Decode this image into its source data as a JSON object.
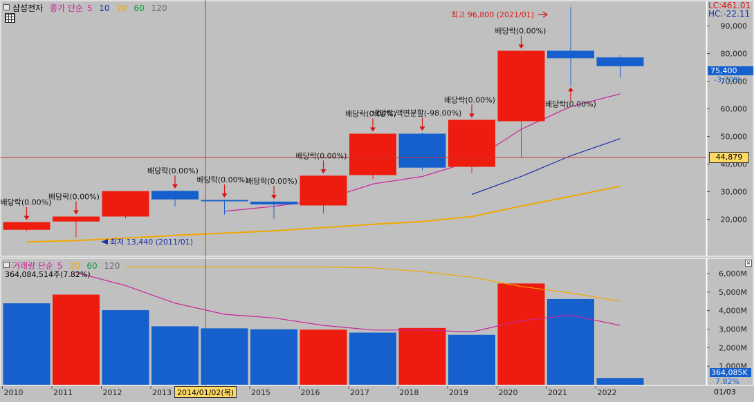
{
  "stock_name": "삼성전자",
  "price_header": {
    "label": "종가 단순",
    "ma_periods": [
      "5",
      "10",
      "20",
      "60",
      "120"
    ],
    "ma_colors": [
      "#cc2299",
      "#1a2fa8",
      "#f0a800",
      "#009933",
      "#6a6a6a"
    ]
  },
  "volume_header": {
    "label": "거래량 단순",
    "ma_periods": [
      "5",
      "20",
      "60",
      "120"
    ],
    "ma_colors": [
      "#cc2299",
      "#f0a800",
      "#009933",
      "#6a6a6a"
    ],
    "info": "364,084,514주(7.82%)"
  },
  "right_info": {
    "lc": "LC:461.01",
    "hc": "HC:-22.11"
  },
  "current_price": {
    "value": "75,400",
    "change": "-3.70%"
  },
  "crosshair": {
    "price_label": "44,879",
    "date_label": "2014/01/02(목)"
  },
  "volume_current": {
    "value": "364,085K",
    "pct": "7.82%"
  },
  "last_tick_date": "01/03",
  "colors": {
    "up": "#ee1c0f",
    "down": "#1560cc",
    "background": "#c0c0c0",
    "crosshair": "#cc3333"
  },
  "annotations": {
    "high": "최고 96,800 (2021/01)",
    "low": "최저 13,440 (2011/01)",
    "dividend": "배당락(0.00%)",
    "split": "배당락,액면분할(-98.00%)"
  },
  "chart_data": [
    {
      "type": "candlestick",
      "title": "",
      "period": "yearly",
      "categories": [
        "2010",
        "2011",
        "2012",
        "2013",
        "2014",
        "2015",
        "2016",
        "2017",
        "2018",
        "2019",
        "2020",
        "2021",
        "2022"
      ],
      "ohlc": [
        [
          16200,
          19000,
          15700,
          19000
        ],
        [
          19200,
          21000,
          13440,
          21000
        ],
        [
          21000,
          30200,
          20300,
          30200
        ],
        [
          30300,
          30400,
          24700,
          27200
        ],
        [
          27000,
          27100,
          21700,
          26600
        ],
        [
          26400,
          26600,
          20200,
          25400
        ],
        [
          25000,
          35800,
          22100,
          35800
        ],
        [
          36000,
          51000,
          34600,
          51000
        ],
        [
          51000,
          51300,
          37800,
          38700
        ],
        [
          39000,
          56000,
          36700,
          56000
        ],
        [
          55500,
          81000,
          42300,
          81000
        ],
        [
          81000,
          96800,
          68300,
          78300
        ],
        [
          78600,
          79400,
          71200,
          75400
        ]
      ],
      "ma": [
        {
          "name": "5",
          "values": [
            null,
            null,
            null,
            null,
            22900,
            24700,
            27000,
            32800,
            35500,
            41000,
            52600,
            60800,
            65400
          ]
        },
        {
          "name": "10",
          "values": [
            null,
            null,
            null,
            null,
            null,
            null,
            null,
            null,
            null,
            29000,
            35500,
            43000,
            49200
          ]
        },
        {
          "name": "20",
          "values": [
            11800,
            12300,
            13200,
            14200,
            15000,
            15800,
            17000,
            18200,
            19200,
            21000,
            24800,
            28300,
            32000
          ]
        }
      ],
      "markers": {
        "dividend_years": [
          "2010",
          "2011",
          "2013",
          "2014",
          "2015",
          "2016",
          "2017",
          "2019",
          "2020",
          "2021"
        ],
        "split_year": "2018"
      },
      "y_ticks": [
        "20,000",
        "30,000",
        "40,000",
        "50,000",
        "60,000",
        "70,000",
        "80,000",
        "90,000"
      ],
      "ylim": [
        8000,
        100000
      ],
      "grid": false
    },
    {
      "type": "bar",
      "title": "",
      "unit": "M",
      "categories": [
        "2010",
        "2011",
        "2012",
        "2013",
        "2014",
        "2015",
        "2016",
        "2017",
        "2018",
        "2019",
        "2020",
        "2021",
        "2022"
      ],
      "values": [
        4390,
        4860,
        4020,
        3150,
        3040,
        2990,
        2970,
        2810,
        3060,
        2690,
        5460,
        4620,
        364
      ],
      "direction": [
        "down",
        "up",
        "down",
        "down",
        "down",
        "down",
        "up",
        "down",
        "up",
        "down",
        "up",
        "down",
        "down"
      ],
      "ma": [
        {
          "name": "5",
          "values": [
            null,
            6050,
            5350,
            4400,
            3800,
            3600,
            3200,
            2950,
            2950,
            2850,
            3450,
            3750,
            3200
          ]
        },
        {
          "name": "20",
          "values": [
            null,
            null,
            6350,
            6350,
            6350,
            6350,
            6350,
            6300,
            6100,
            5800,
            5300,
            4950,
            4500
          ]
        }
      ],
      "y_ticks": [
        "1,000M",
        "2,000M",
        "3,000M",
        "4,000M",
        "5,000M",
        "6,000M"
      ],
      "ylim": [
        0,
        6900
      ],
      "grid": false
    }
  ]
}
